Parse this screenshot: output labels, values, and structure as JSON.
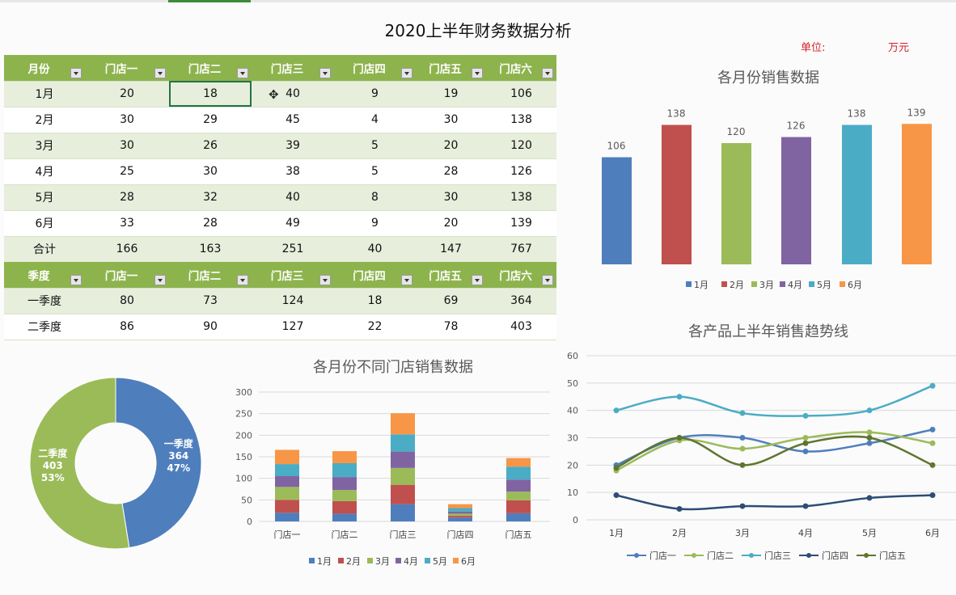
{
  "title": "2020上半年财务数据分析",
  "unit": {
    "label": "单位:",
    "value": "万元"
  },
  "monthly_table": {
    "headers": [
      "月份",
      "门店一",
      "门店二",
      "门店三",
      "门店四",
      "门店五",
      "门店六"
    ],
    "rows": [
      [
        "1月",
        "20",
        "18",
        "40",
        "9",
        "19",
        "106"
      ],
      [
        "2月",
        "30",
        "29",
        "45",
        "4",
        "30",
        "138"
      ],
      [
        "3月",
        "30",
        "26",
        "39",
        "5",
        "20",
        "120"
      ],
      [
        "4月",
        "25",
        "30",
        "38",
        "5",
        "28",
        "126"
      ],
      [
        "5月",
        "28",
        "32",
        "40",
        "8",
        "30",
        "138"
      ],
      [
        "6月",
        "33",
        "28",
        "49",
        "9",
        "20",
        "139"
      ],
      [
        "合计",
        "166",
        "163",
        "251",
        "40",
        "147",
        "767"
      ]
    ]
  },
  "quarter_table": {
    "headers": [
      "季度",
      "门店一",
      "门店二",
      "门店三",
      "门店四",
      "门店五",
      "门店六"
    ],
    "rows": [
      [
        "一季度",
        "80",
        "73",
        "124",
        "18",
        "69",
        "364"
      ],
      [
        "二季度",
        "86",
        "90",
        "127",
        "22",
        "78",
        "403"
      ]
    ]
  },
  "colors": {
    "blue": "#4f7ebd",
    "red": "#c0504d",
    "green": "#9bbb59",
    "purple": "#8064a2",
    "teal": "#4bacc6",
    "orange": "#f79646",
    "navy": "#2c4d75",
    "olive": "#5f7530",
    "header_green": "#8db34d"
  },
  "chart_data": [
    {
      "type": "bar",
      "title": "各月份销售数据",
      "categories": [
        "1月",
        "2月",
        "3月",
        "4月",
        "5月",
        "6月"
      ],
      "values": [
        106,
        138,
        120,
        126,
        138,
        139
      ],
      "legend": [
        "1月",
        "2月",
        "3月",
        "4月",
        "5月",
        "6月"
      ],
      "legend_position": "bottom"
    },
    {
      "type": "pie",
      "title": "",
      "labels": [
        "一季度",
        "二季度"
      ],
      "values": [
        364,
        403
      ],
      "percent_labels": [
        "47%",
        "53%"
      ]
    },
    {
      "type": "bar",
      "title": "各月份不同门店销售数据",
      "categories": [
        "门店一",
        "门店二",
        "门店三",
        "门店四",
        "门店五"
      ],
      "series": [
        {
          "name": "1月",
          "values": [
            20,
            18,
            40,
            9,
            19
          ]
        },
        {
          "name": "2月",
          "values": [
            30,
            29,
            45,
            4,
            30
          ]
        },
        {
          "name": "3月",
          "values": [
            30,
            26,
            39,
            5,
            20
          ]
        },
        {
          "name": "4月",
          "values": [
            25,
            30,
            38,
            5,
            28
          ]
        },
        {
          "name": "5月",
          "values": [
            28,
            32,
            40,
            8,
            30
          ]
        },
        {
          "name": "6月",
          "values": [
            33,
            28,
            49,
            9,
            20
          ]
        }
      ],
      "ylim": [
        0,
        300
      ],
      "yticks": [
        "0",
        "50",
        "100",
        "150",
        "200",
        "250",
        "300"
      ],
      "legend_position": "bottom",
      "grid": true
    },
    {
      "type": "line",
      "title": "各产品上半年销售趋势线",
      "categories": [
        "1月",
        "2月",
        "3月",
        "4月",
        "5月",
        "6月"
      ],
      "series": [
        {
          "name": "门店一",
          "values": [
            20,
            30,
            30,
            25,
            28,
            33
          ]
        },
        {
          "name": "门店二",
          "values": [
            18,
            29,
            26,
            30,
            32,
            28
          ]
        },
        {
          "name": "门店三",
          "values": [
            40,
            45,
            39,
            38,
            40,
            49
          ]
        },
        {
          "name": "门店四",
          "values": [
            9,
            4,
            5,
            5,
            8,
            9
          ]
        },
        {
          "name": "门店五",
          "values": [
            19,
            30,
            20,
            28,
            30,
            20
          ]
        }
      ],
      "ylim": [
        0,
        60
      ],
      "yticks": [
        "0",
        "10",
        "20",
        "30",
        "40",
        "50",
        "60"
      ],
      "legend_position": "bottom",
      "grid": true
    }
  ]
}
